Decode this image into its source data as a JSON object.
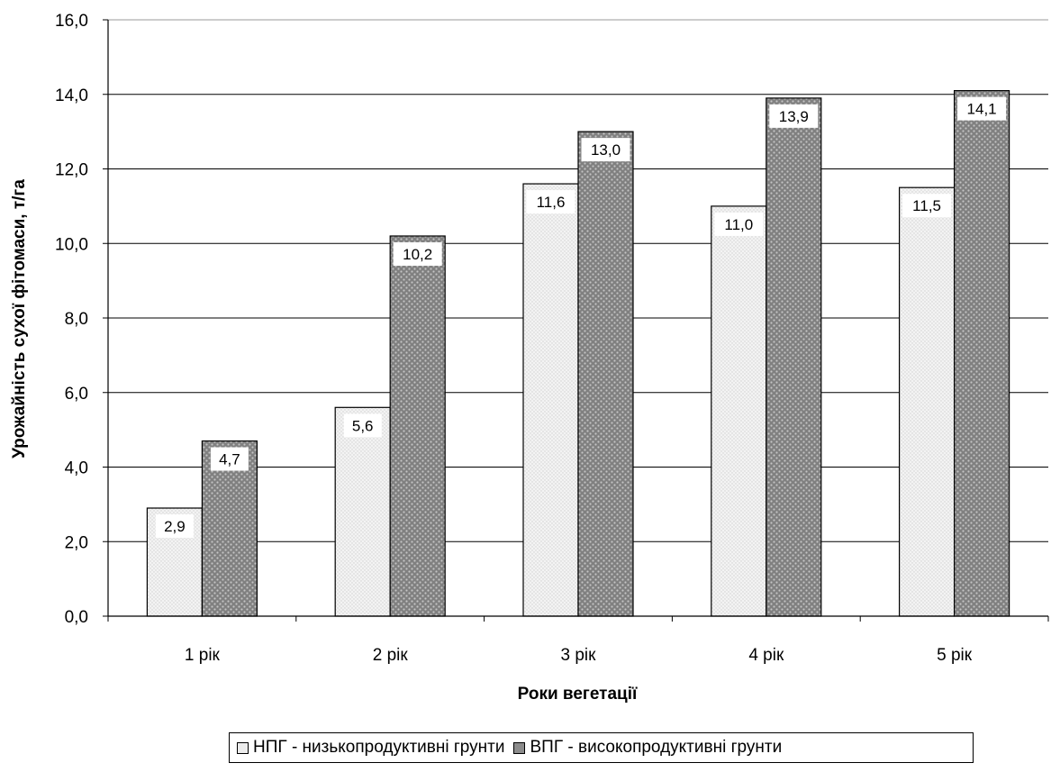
{
  "chart_data": {
    "type": "bar",
    "categories": [
      "1 рік",
      "2 рік",
      "3 рік",
      "4 рік",
      "5 рік"
    ],
    "series": [
      {
        "name": "НПГ - низькопродуктивні грунти",
        "values": [
          2.9,
          5.6,
          11.6,
          11.0,
          11.5
        ],
        "labels": [
          "2,9",
          "5,6",
          "11,6",
          "11,0",
          "11,5"
        ],
        "color": "#e6e6e6"
      },
      {
        "name": "ВПГ - високопродуктивні грунти",
        "values": [
          4.7,
          10.2,
          13.0,
          13.9,
          14.1
        ],
        "labels": [
          "4,7",
          "10,2",
          "13,0",
          "13,9",
          "14,1"
        ],
        "color": "#8c8c8c"
      }
    ],
    "yticks": [
      "0,0",
      "2,0",
      "4,0",
      "6,0",
      "8,0",
      "10,0",
      "12,0",
      "14,0",
      "16,0"
    ],
    "xlabel": "Роки вегетації",
    "ylabel": "Урожайність сухої фітомаси, т/га",
    "ylim": [
      0,
      16
    ],
    "grid": true,
    "legend": "bottom"
  }
}
